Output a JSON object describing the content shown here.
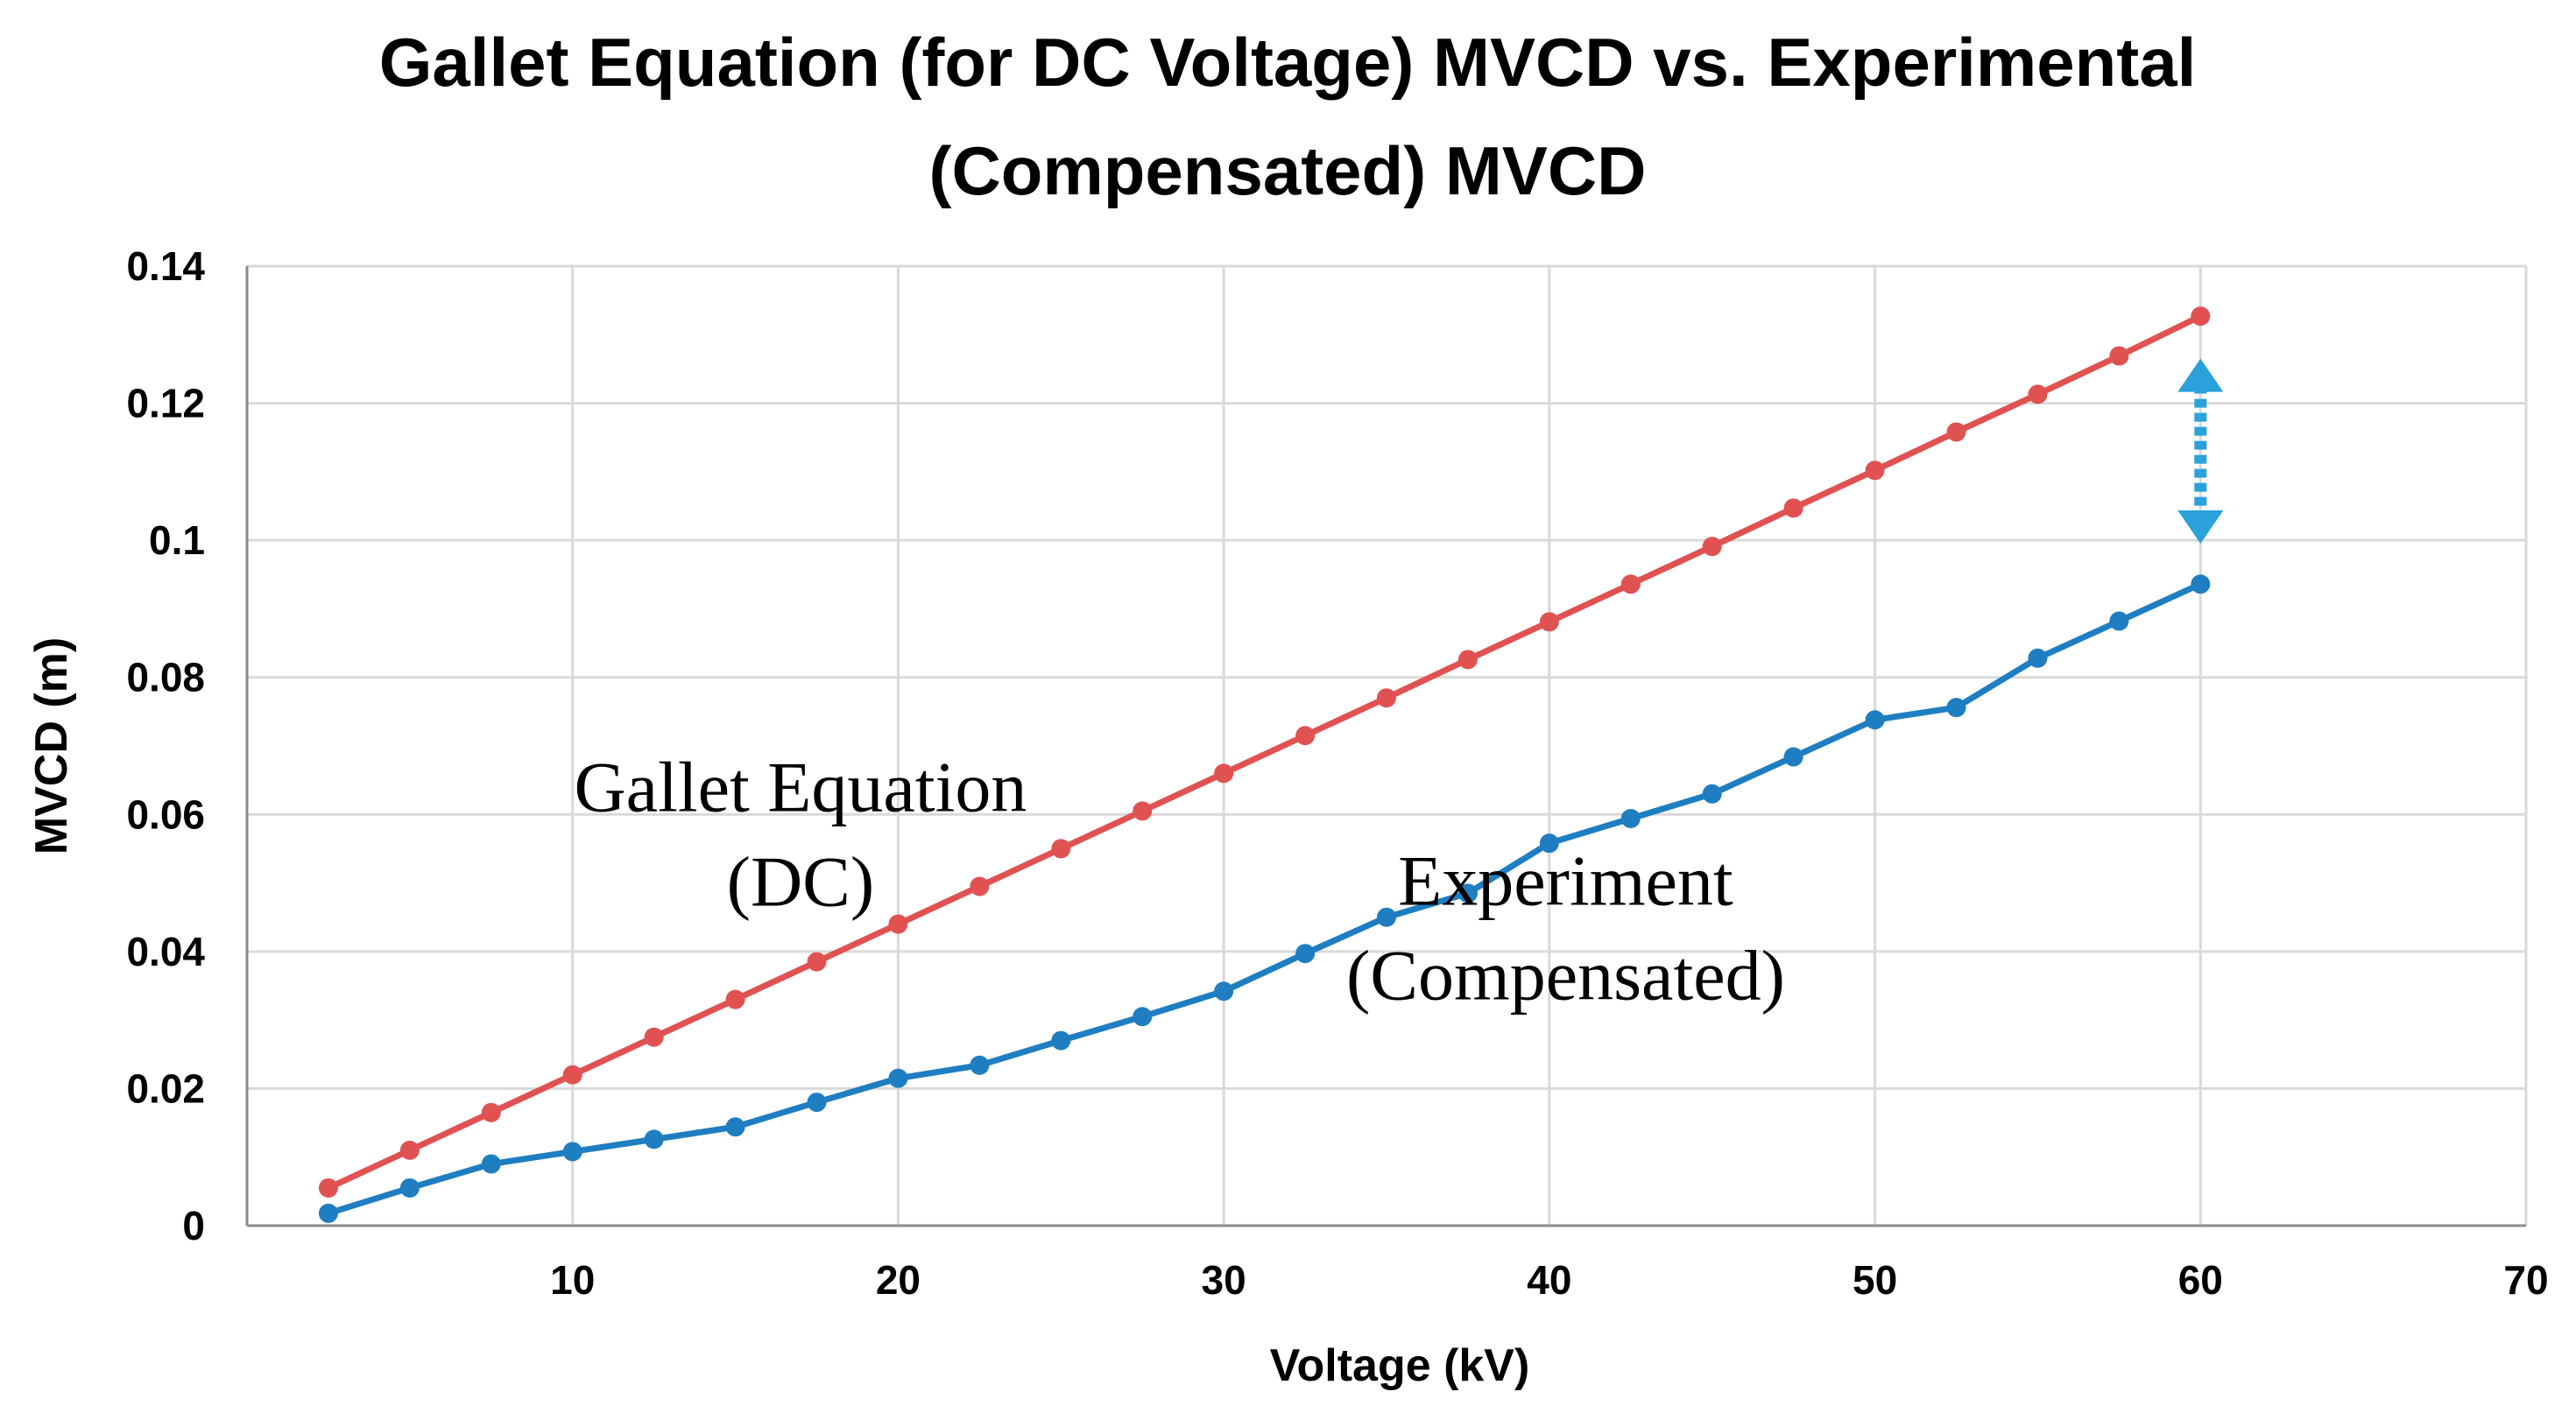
{
  "chart_data": {
    "type": "line",
    "title_lines": [
      "Gallet Equation (for DC Voltage) MVCD vs. Experimental",
      "(Compensated) MVCD"
    ],
    "xlabel": "Voltage (kV)",
    "ylabel": "MVCD (m)",
    "xlim": [
      0,
      70
    ],
    "ylim": [
      0,
      0.14
    ],
    "x_ticks": [
      10,
      20,
      30,
      40,
      50,
      60,
      70
    ],
    "x_tick_labels": [
      "10",
      "20",
      "30",
      "40",
      "50",
      "60",
      "70"
    ],
    "y_ticks": [
      0,
      0.02,
      0.04,
      0.06,
      0.08,
      0.1,
      0.12,
      0.14
    ],
    "y_tick_labels": [
      "0",
      "0.02",
      "0.04",
      "0.06",
      "0.08",
      "0.1",
      "0.12",
      "0.14"
    ],
    "grid": true,
    "series": [
      {
        "name": "Gallet Equation (DC)",
        "color": "#E05252",
        "x": [
          2.5,
          5,
          7.5,
          10,
          12.5,
          15,
          17.5,
          20,
          22.5,
          25,
          27.5,
          30,
          32.5,
          35,
          37.5,
          40,
          42.5,
          45,
          47.5,
          50,
          52.5,
          55,
          57.5,
          60
        ],
        "values": [
          0.0055,
          0.011,
          0.0165,
          0.022,
          0.0275,
          0.033,
          0.0385,
          0.044,
          0.0495,
          0.055,
          0.0605,
          0.066,
          0.0715,
          0.077,
          0.0826,
          0.0881,
          0.0936,
          0.0991,
          0.1047,
          0.1102,
          0.1158,
          0.1213,
          0.1269,
          0.1327
        ]
      },
      {
        "name": "Experiment (Compensated)",
        "color": "#1F7EC1",
        "x": [
          2.5,
          5,
          7.5,
          10,
          12.5,
          15,
          17.5,
          20,
          22.5,
          25,
          27.5,
          30,
          32.5,
          35,
          37.5,
          40,
          42.5,
          45,
          47.5,
          50,
          52.5,
          55,
          57.5,
          60
        ],
        "values": [
          0.0018,
          0.0055,
          0.009,
          0.0108,
          0.0126,
          0.0144,
          0.018,
          0.0215,
          0.0234,
          0.027,
          0.0305,
          0.0342,
          0.0397,
          0.045,
          0.0485,
          0.0558,
          0.0594,
          0.063,
          0.0684,
          0.0738,
          0.0756,
          0.0828,
          0.0882,
          0.0936
        ]
      }
    ],
    "annotations": [
      {
        "lines": [
          "Gallet Equation",
          "(DC)"
        ],
        "x": 17,
        "y": 0.0605
      },
      {
        "lines": [
          "Experiment",
          "(Compensated)"
        ],
        "x": 40.5,
        "y": 0.0468
      }
    ],
    "gap_arrow": {
      "x": 60,
      "y_from": 0.0995,
      "y_to": 0.1265,
      "color": "#2AA1DB"
    }
  }
}
